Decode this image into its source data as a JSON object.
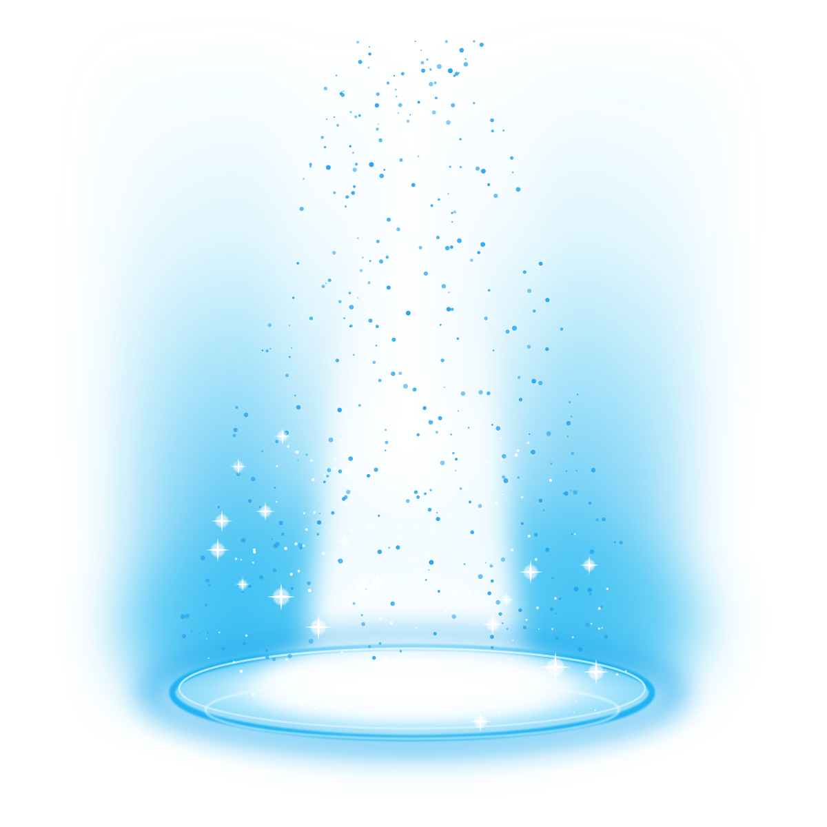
{
  "image": {
    "subject": "",
    "colors": {
      "background": "#ffffff",
      "glow": "#3cc4f4",
      "glow_deep": "#1aa8ee",
      "ring": "#22b4f2",
      "particle": "#2aa6f0",
      "sparkle": "#ffffff"
    },
    "icons": [
      "sparkle-icon",
      "particle-dot"
    ]
  }
}
